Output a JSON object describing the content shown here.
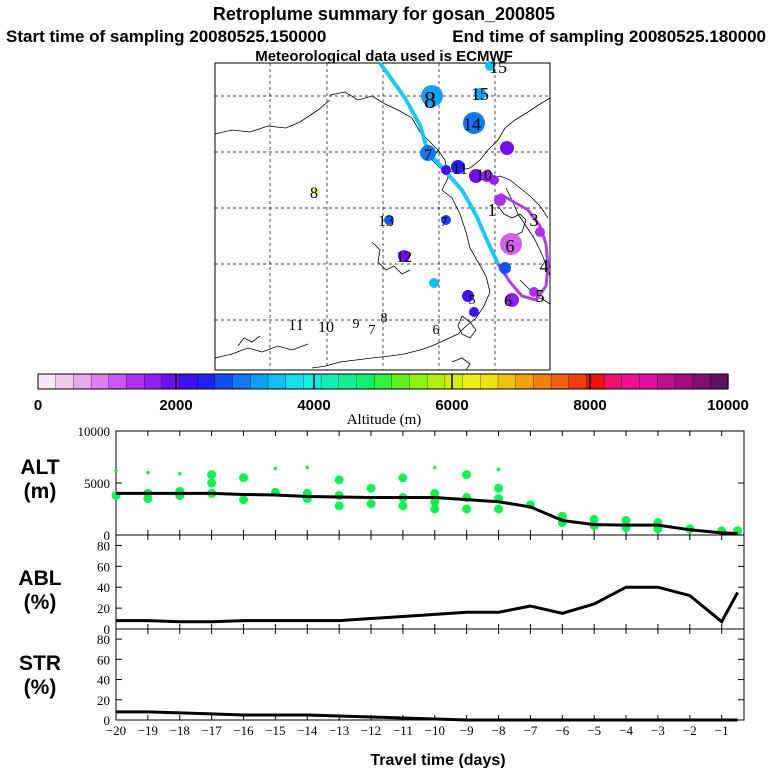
{
  "title": {
    "line1": "Retroplume summary for gosan_200805",
    "start": "Start time of sampling 20080525.150000",
    "end": "End time of sampling 20080525.180000",
    "met": "Meteorological data used is ECMWF"
  },
  "chart_data": [
    {
      "type": "scatter",
      "name": "map",
      "description_labels": [
        "15",
        "8",
        "15",
        "14",
        "7",
        "11",
        "10",
        "8",
        "13",
        "7",
        "12",
        "3",
        "6",
        "4",
        "1",
        "5",
        "5",
        "6",
        "6",
        "11",
        "10",
        "9",
        "8",
        "7"
      ],
      "trajectory_color_1": "#1ec8f0",
      "trajectory_color_2": "#b040e0"
    },
    {
      "type": "table",
      "name": "colorbar",
      "ticks": [
        "0",
        "2000",
        "4000",
        "6000",
        "8000",
        "10000"
      ],
      "xlabel": "Altitude (m)",
      "colors": [
        "#f8e6f8",
        "#f0c8f0",
        "#e8a8f0",
        "#dc80f0",
        "#c858f0",
        "#b030f0",
        "#9020f0",
        "#7010f0",
        "#4010f0",
        "#2020f0",
        "#1050f0",
        "#1078f0",
        "#10a0f0",
        "#10c0f0",
        "#10e0f0",
        "#10f0e0",
        "#10f0b0",
        "#10f090",
        "#10f070",
        "#30f040",
        "#60f020",
        "#90f010",
        "#b0f010",
        "#d0f010",
        "#f0f010",
        "#f0e010",
        "#f0c010",
        "#f0a010",
        "#f08010",
        "#f06010",
        "#f04010",
        "#f01010",
        "#f01070",
        "#f01090",
        "#e010a0",
        "#c01090",
        "#a01080",
        "#801070",
        "#601060"
      ]
    },
    {
      "type": "line",
      "name": "ALT",
      "ylabel": "ALT",
      "yunit": "(m)",
      "ylim": [
        0,
        10000
      ],
      "yticks": [
        "0",
        "5000",
        "10000"
      ],
      "x": [
        -20,
        -19,
        -18,
        -17,
        -16,
        -15,
        -14,
        -13,
        -12,
        -11,
        -10,
        -9,
        -8,
        -7,
        -6,
        -5,
        -4,
        -3,
        -2,
        -1,
        -0.5
      ],
      "values": [
        4000,
        4000,
        4000,
        4000,
        3900,
        3850,
        3700,
        3650,
        3600,
        3600,
        3600,
        3400,
        3200,
        2700,
        1400,
        1000,
        950,
        950,
        500,
        200,
        150
      ],
      "scatter_x": [
        -20,
        -20,
        -19,
        -19,
        -19,
        -18,
        -18,
        -18,
        -17,
        -17,
        -17,
        -16,
        -16,
        -15,
        -15,
        -14,
        -14,
        -14,
        -13,
        -13,
        -13,
        -12,
        -12,
        -11,
        -11,
        -11,
        -10,
        -10,
        -10,
        -10,
        -9,
        -9,
        -9,
        -8,
        -8,
        -8,
        -8,
        -7,
        -6,
        -6,
        -5,
        -5,
        -4,
        -4,
        -3,
        -3,
        -2,
        -1,
        -0.5
      ],
      "scatter_y": [
        6200,
        3800,
        6000,
        4000,
        3500,
        5900,
        4200,
        3800,
        5800,
        5000,
        4000,
        5500,
        3400,
        6400,
        4100,
        6500,
        4000,
        3500,
        5300,
        3800,
        2800,
        4500,
        3000,
        5500,
        3600,
        2800,
        6500,
        4000,
        3200,
        2500,
        5800,
        3600,
        2500,
        6300,
        4500,
        3500,
        2500,
        2900,
        1800,
        1200,
        1500,
        900,
        1400,
        700,
        1200,
        600,
        600,
        400,
        400
      ],
      "point_color": "#10f050"
    },
    {
      "type": "line",
      "name": "ABL",
      "ylabel": "ABL",
      "yunit": "(%)",
      "ylim": [
        0,
        90
      ],
      "yticks": [
        "0",
        "20",
        "40",
        "60",
        "80"
      ],
      "x": [
        -20,
        -19,
        -18,
        -17,
        -16,
        -15,
        -14,
        -13,
        -12,
        -11,
        -10,
        -9,
        -8,
        -7,
        -6,
        -5,
        -4,
        -3,
        -2,
        -1,
        -0.5
      ],
      "values": [
        8,
        8,
        7,
        7,
        8,
        8,
        8,
        8,
        10,
        12,
        14,
        16,
        16,
        22,
        15,
        24,
        40,
        40,
        32,
        7,
        35
      ]
    },
    {
      "type": "line",
      "name": "STR",
      "ylabel": "STR",
      "yunit": "(%)",
      "ylim": [
        0,
        90
      ],
      "yticks": [
        "0",
        "20",
        "40",
        "60",
        "80"
      ],
      "x": [
        -20,
        -19,
        -18,
        -17,
        -16,
        -15,
        -14,
        -13,
        -12,
        -11,
        -10,
        -9,
        -8,
        -7,
        -6,
        -5,
        -4,
        -3,
        -2,
        -1,
        -0.5
      ],
      "values": [
        8,
        8,
        7,
        6,
        5,
        5,
        5,
        4,
        3,
        2,
        1,
        0,
        0,
        0,
        0,
        0,
        0,
        0,
        0,
        0,
        0
      ],
      "xticks": [
        "−20",
        "−19",
        "−18",
        "−17",
        "−16",
        "−15",
        "−14",
        "−13",
        "−12",
        "−11",
        "−10",
        "−9",
        "−8",
        "−7",
        "−6",
        "−5",
        "−4",
        "−3",
        "−2",
        "−1"
      ],
      "xlabel": "Travel time (days)"
    }
  ]
}
